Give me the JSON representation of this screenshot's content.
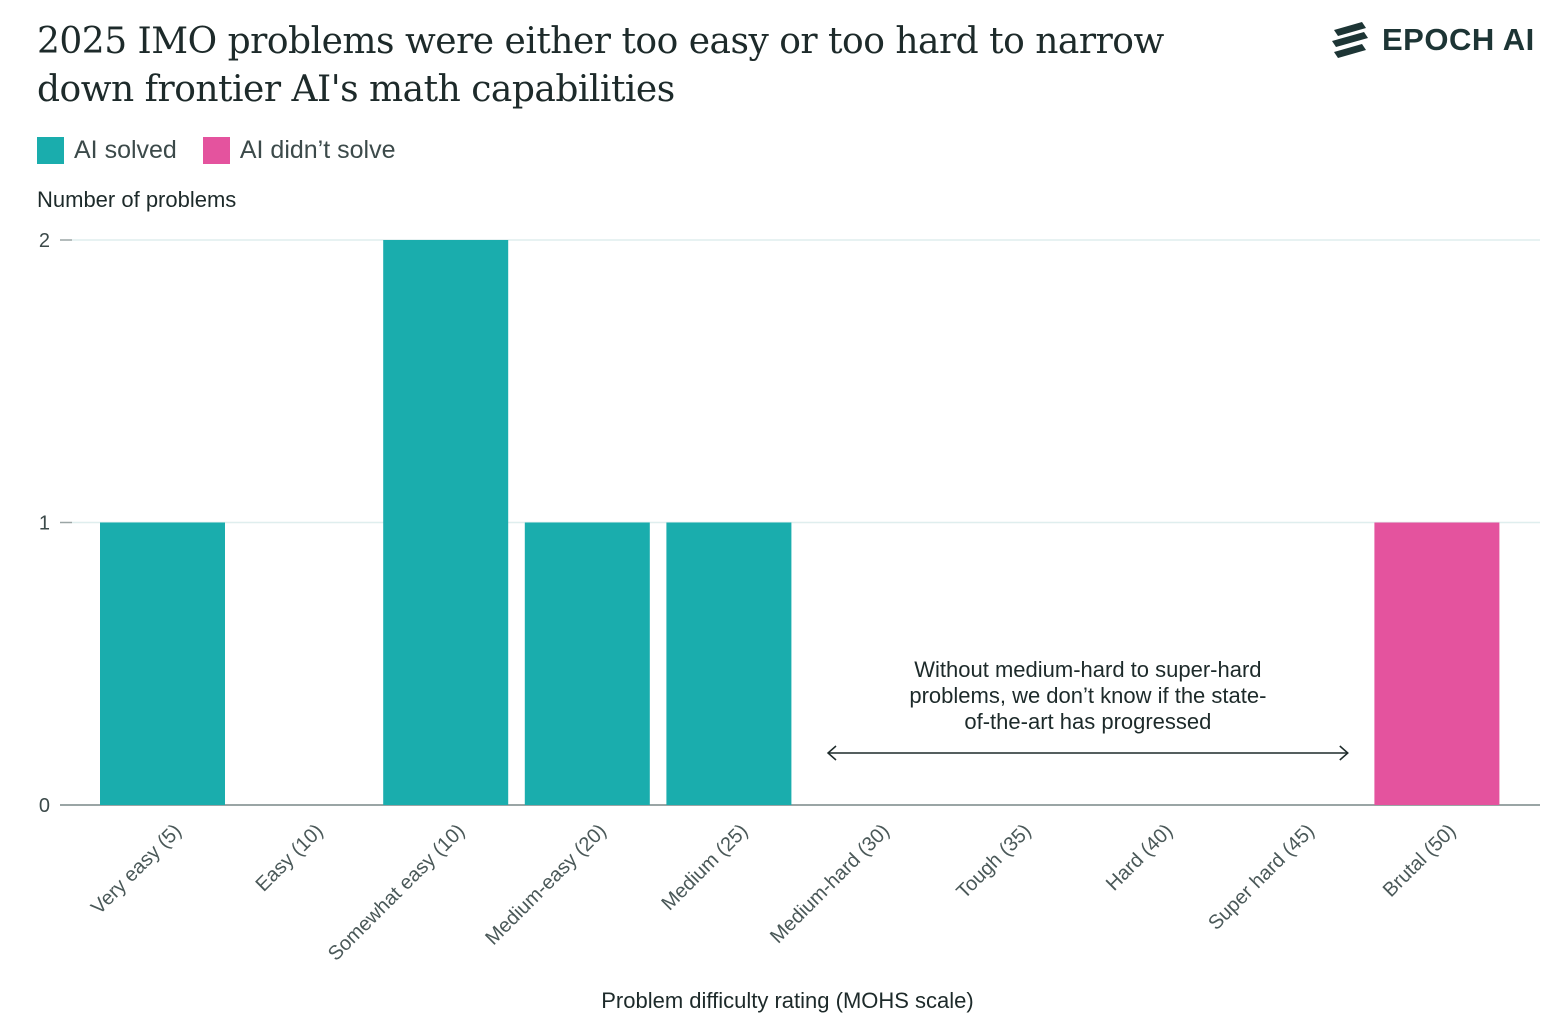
{
  "title": "2025 IMO problems were either too easy or too hard to narrow down frontier AI's math capabilities",
  "logo": {
    "text": "EPOCH AI",
    "icon": "epoch-logo-icon"
  },
  "legend": [
    {
      "label": "AI solved",
      "color": "#1aadad"
    },
    {
      "label": "AI didn’t solve",
      "color": "#e4539e"
    }
  ],
  "colors": {
    "solved": "#1aadad",
    "unsolved": "#e4539e",
    "grid": "#dfeeee",
    "axis": "#9aa5a5"
  },
  "chart_data": {
    "type": "bar",
    "title": "2025 IMO problems were either too easy or too hard to narrow down frontier AI's math capabilities",
    "ylabel": "Number of problems",
    "xlabel": "Problem difficulty rating (MOHS scale)",
    "ylim": [
      0,
      2
    ],
    "yticks": [
      "0",
      "1",
      "2"
    ],
    "grid": true,
    "legend_position": "top-left",
    "categories": [
      "Very easy (5)",
      "Easy (10)",
      "Somewhat easy (10)",
      "Medium-easy (20)",
      "Medium (25)",
      "Medium-hard (30)",
      "Tough (35)",
      "Hard (40)",
      "Super hard (45)",
      "Brutal (50)"
    ],
    "series": [
      {
        "name": "AI solved",
        "values": [
          1,
          0,
          2,
          1,
          1,
          0,
          0,
          0,
          0,
          0
        ]
      },
      {
        "name": "AI didn’t solve",
        "values": [
          0,
          0,
          0,
          0,
          0,
          0,
          0,
          0,
          0,
          1
        ]
      }
    ],
    "annotation": {
      "lines": [
        "Without medium-hard to super-hard",
        "problems, we don’t know if the state-",
        "of-the-art has progressed"
      ],
      "from_category": "Medium-hard (30)",
      "to_category": "Super hard (45)"
    }
  }
}
